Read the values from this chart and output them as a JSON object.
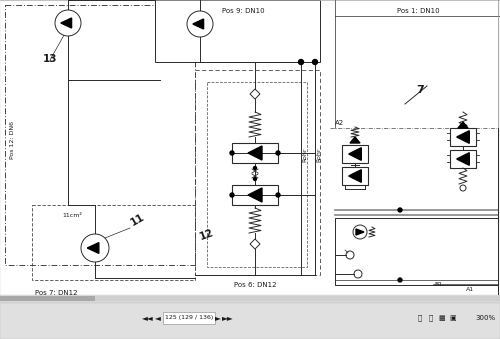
{
  "bg_color": "#ebebeb",
  "diagram_bg": "#ffffff",
  "line_color": "#2a2a2a",
  "dashed_color": "#444444",
  "text_color": "#1a1a1a",
  "labels": {
    "pos1": "Pos 1: DN10",
    "pos6": "Pos 6: DN12",
    "pos7": "Pos 7: DN12",
    "pos9": "Pos 9: DN10",
    "pos12": "Pos 12: DN6",
    "num13": "13",
    "num11": "11",
    "num12": "12",
    "num7": "7",
    "A2": "A2",
    "A1": "A1",
    "B1": "B1",
    "Rohr1": "Rohr",
    "Rohr2": "Rohr",
    "vol": "11cm²"
  },
  "nav_text": "125 (129 / 136)",
  "zoom_text": "300%",
  "toolbar_bg": "#e0e0e0"
}
